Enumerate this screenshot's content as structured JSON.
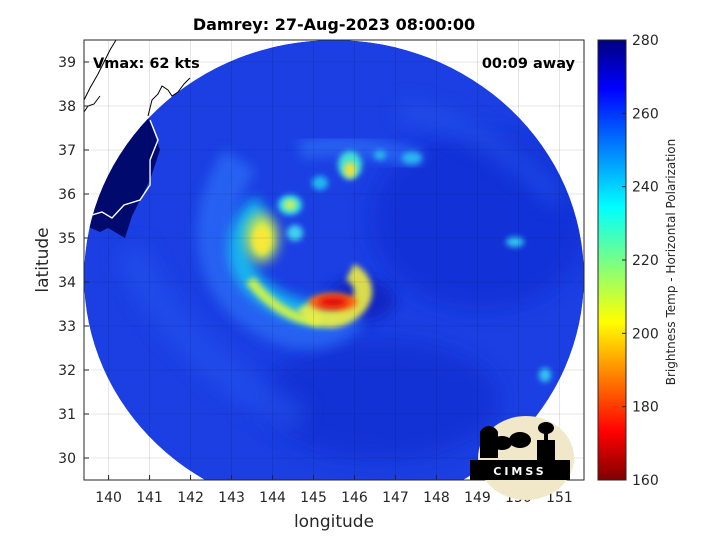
{
  "chart_data": {
    "type": "heatmap",
    "title": "Damrey: 27-Aug-2023 08:00:00",
    "xlabel": "longitude",
    "ylabel": "latitude",
    "xlim": [
      139.4,
      151.6
    ],
    "ylim": [
      29.5,
      39.5
    ],
    "xticks": [
      140,
      141,
      142,
      143,
      144,
      145,
      146,
      147,
      148,
      149,
      150,
      151
    ],
    "yticks": [
      30,
      31,
      32,
      33,
      34,
      35,
      36,
      37,
      38,
      39
    ],
    "grid": true,
    "annotations": {
      "vmax": "Vmax: 62 kts",
      "time_away": "00:09 away"
    },
    "colorbar": {
      "label": "Brightness Temp - Horizontal Polarization",
      "range": [
        160,
        280
      ],
      "ticks": [
        160,
        180,
        200,
        220,
        240,
        260,
        280
      ],
      "colormap": "jet"
    },
    "swath": {
      "center": [
        145.5,
        34.4
      ],
      "radius_deg": 6.0
    },
    "features": [
      {
        "name": "eyewall-core",
        "lon": 145.4,
        "lat": 33.5,
        "temp": 180
      },
      {
        "name": "western-band",
        "lon": 143.6,
        "lat": 34.9,
        "temp": 205
      },
      {
        "name": "northern-cell",
        "lon": 145.8,
        "lat": 36.5,
        "temp": 200
      }
    ],
    "logo": "CIMSS"
  },
  "colors": {
    "background": "#ffffff",
    "swath_base": "#1a3fe0",
    "land": "#000a6e",
    "coastline": "#ffffff",
    "grid": "#d9d9d9"
  }
}
